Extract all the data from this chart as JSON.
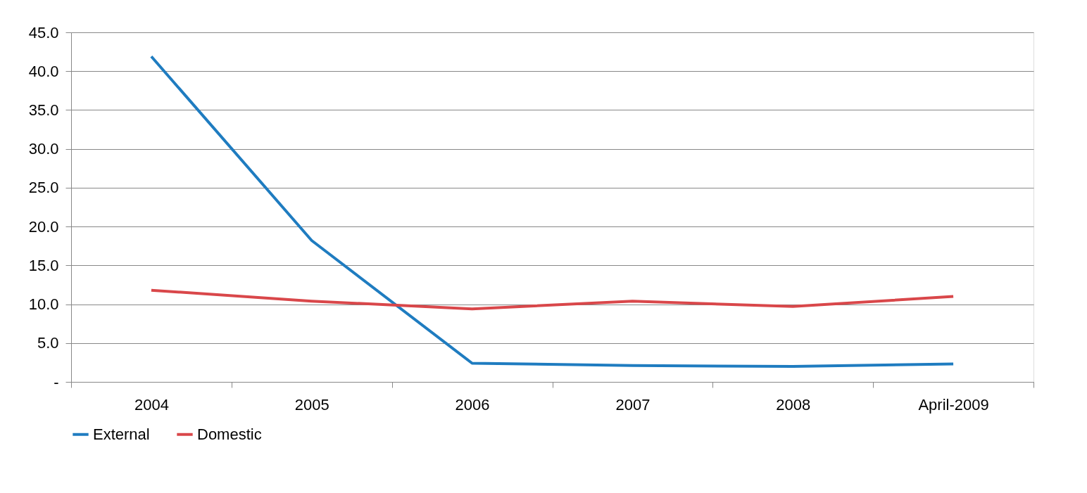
{
  "chart_data": {
    "type": "line",
    "categories": [
      "2004",
      "2005",
      "2006",
      "2007",
      "2008",
      "April-2009"
    ],
    "series": [
      {
        "name": "External",
        "color": "#1f7cc0",
        "values": [
          41.9,
          18.2,
          2.4,
          2.1,
          2.0,
          2.3
        ]
      },
      {
        "name": "Domestic",
        "color": "#d9474a",
        "values": [
          11.8,
          10.4,
          9.4,
          10.4,
          9.7,
          11.0
        ]
      }
    ],
    "ylim": [
      0,
      45
    ],
    "yticks": [
      {
        "value": 0,
        "label": "-"
      },
      {
        "value": 5,
        "label": "5.0"
      },
      {
        "value": 10,
        "label": "10.0"
      },
      {
        "value": 15,
        "label": "15.0"
      },
      {
        "value": 20,
        "label": "20.0"
      },
      {
        "value": 25,
        "label": "25.0"
      },
      {
        "value": 30,
        "label": "30.0"
      },
      {
        "value": 35,
        "label": "35.0"
      },
      {
        "value": 40,
        "label": "40.0"
      },
      {
        "value": 45,
        "label": "45.0"
      }
    ],
    "grid": "y",
    "legend": "bottom",
    "marker": "none",
    "line_style": "solid"
  }
}
